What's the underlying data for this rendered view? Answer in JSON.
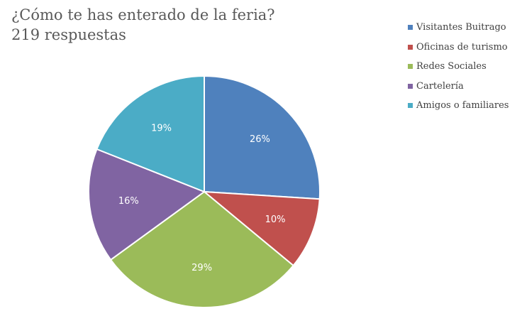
{
  "title": {
    "line1": "¿Cómo te has enterado de la feria?",
    "line2": "219 respuestas"
  },
  "chart_data": {
    "type": "pie",
    "title": "¿Cómo te has enterado de la feria?",
    "subtitle": "219 respuestas",
    "legend_position": "right",
    "categories": [
      "Visitantes Buitrago",
      "Oficinas de turismo",
      "Redes Sociales",
      "Cartelería",
      "Amigos o familiares"
    ],
    "values": [
      26,
      10,
      29,
      16,
      19
    ],
    "labels": [
      "26%",
      "10%",
      "29%",
      "16%",
      "19%"
    ],
    "colors": [
      "#4F81BD",
      "#C0504D",
      "#9BBB59",
      "#8064A2",
      "#4BACC6"
    ]
  }
}
